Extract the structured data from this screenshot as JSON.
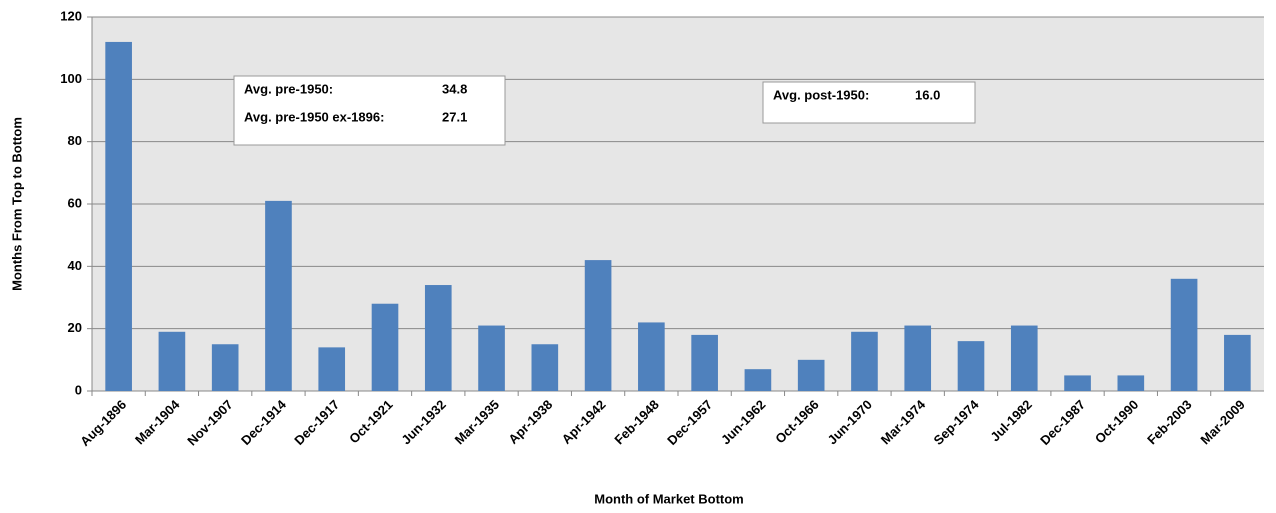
{
  "chart_data": {
    "type": "bar",
    "x_label": "Month of Market Bottom",
    "y_label": "Months From Top to Bottom",
    "categories": [
      "Aug-1896",
      "Mar-1904",
      "Nov-1907",
      "Dec-1914",
      "Dec-1917",
      "Oct-1921",
      "Jun-1932",
      "Mar-1935",
      "Apr-1938",
      "Apr-1942",
      "Feb-1948",
      "Dec-1957",
      "Jun-1962",
      "Oct-1966",
      "Jun-1970",
      "Mar-1974",
      "Sep-1974",
      "Jul-1982",
      "Dec-1987",
      "Oct-1990",
      "Feb-2003",
      "Mar-2009"
    ],
    "values": [
      112,
      19,
      15,
      61,
      14,
      28,
      34,
      21,
      15,
      42,
      22,
      18,
      7,
      10,
      19,
      21,
      16,
      21,
      5,
      5,
      36,
      18
    ],
    "color": "#4f81bd",
    "ylim": [
      0,
      120
    ],
    "yticks": [
      0,
      20,
      40,
      60,
      80,
      100,
      120
    ],
    "grid": true,
    "annotations": [
      [
        {
          "label": "Avg. pre-1950:",
          "value": "34.8"
        },
        {
          "label": "Avg. pre-1950 ex-1896:",
          "value": "27.1"
        }
      ],
      [
        {
          "label": "Avg. post-1950:",
          "value": "16.0"
        }
      ]
    ]
  }
}
